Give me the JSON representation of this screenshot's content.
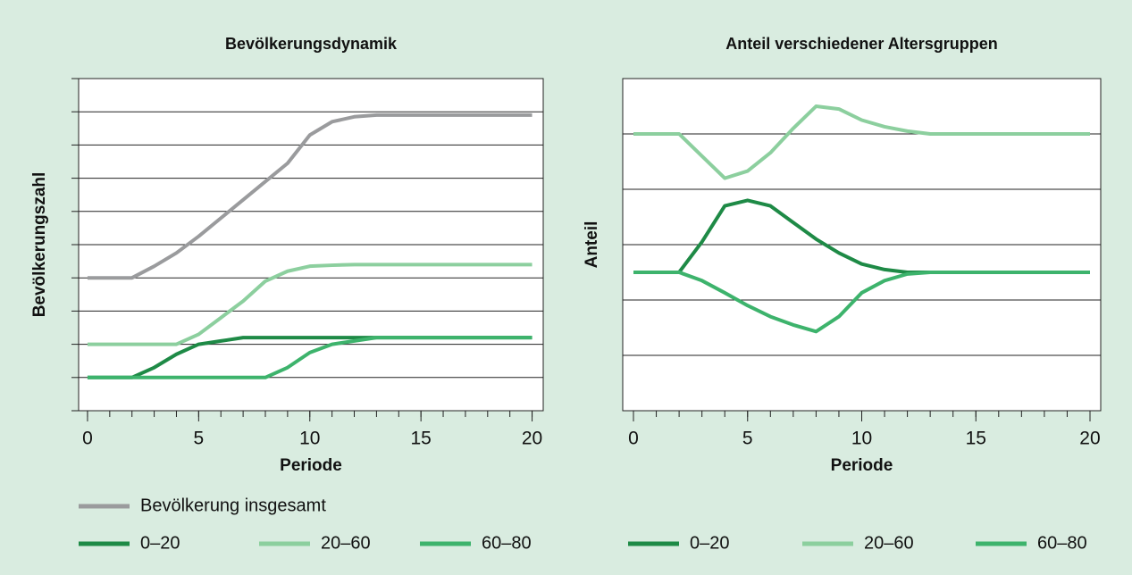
{
  "chart_data": [
    {
      "type": "line",
      "title": "Bevölkerungsdynamik",
      "x_label": "Periode",
      "y_label": "Bevölkerungszahl",
      "x": [
        0,
        1,
        2,
        3,
        4,
        5,
        6,
        7,
        8,
        9,
        10,
        11,
        12,
        13,
        14,
        15,
        16,
        17,
        18,
        19,
        20
      ],
      "xlim": [
        -0.4,
        20.5
      ],
      "xticks": [
        0,
        5,
        10,
        15,
        20
      ],
      "ylim": [
        0,
        10
      ],
      "yticks": [
        0,
        1,
        2,
        3,
        4,
        5,
        6,
        7,
        8,
        9,
        10
      ],
      "grid": true,
      "y_tick_marks": true,
      "series": [
        {
          "name": "Bevölkerung insgesamt",
          "color": "#9a9b9d",
          "values": [
            4,
            4,
            4,
            4.35,
            4.75,
            5.25,
            5.8,
            6.35,
            6.9,
            7.45,
            8.3,
            8.7,
            8.85,
            8.9,
            8.9,
            8.9,
            8.9,
            8.9,
            8.9,
            8.9,
            8.9
          ]
        },
        {
          "name": "0–20",
          "color": "#1e8a46",
          "values": [
            1,
            1,
            1,
            1.3,
            1.7,
            2,
            2.1,
            2.2,
            2.2,
            2.2,
            2.2,
            2.2,
            2.2,
            2.2,
            2.2,
            2.2,
            2.2,
            2.2,
            2.2,
            2.2,
            2.2
          ]
        },
        {
          "name": "20–60",
          "color": "#8ccf9e",
          "values": [
            2,
            2,
            2,
            2,
            2,
            2.3,
            2.8,
            3.3,
            3.9,
            4.2,
            4.35,
            4.38,
            4.4,
            4.4,
            4.4,
            4.4,
            4.4,
            4.4,
            4.4,
            4.4,
            4.4
          ]
        },
        {
          "name": "60–80",
          "color": "#3db36c",
          "values": [
            1,
            1,
            1,
            1,
            1,
            1,
            1,
            1,
            1,
            1.3,
            1.75,
            2,
            2.1,
            2.2,
            2.2,
            2.2,
            2.2,
            2.2,
            2.2,
            2.2,
            2.2
          ]
        }
      ]
    },
    {
      "type": "line",
      "title": "Anteil verschiedener Altersgruppen",
      "x_label": "Periode",
      "y_label": "Anteil",
      "x": [
        0,
        1,
        2,
        3,
        4,
        5,
        6,
        7,
        8,
        9,
        10,
        11,
        12,
        13,
        14,
        15,
        16,
        17,
        18,
        19,
        20
      ],
      "xlim": [
        -0.47,
        20.47
      ],
      "xticks": [
        0,
        5,
        10,
        15,
        20
      ],
      "ylim": [
        0,
        6
      ],
      "yticks": [
        1,
        2,
        3,
        4,
        5
      ],
      "grid": true,
      "y_tick_marks": false,
      "series": [
        {
          "name": "0–20",
          "color": "#1e8a46",
          "values": [
            2.5,
            2.5,
            2.5,
            3.05,
            3.7,
            3.8,
            3.7,
            3.4,
            3.1,
            2.85,
            2.65,
            2.55,
            2.5,
            2.5,
            2.5,
            2.5,
            2.5,
            2.5,
            2.5,
            2.5,
            2.5
          ]
        },
        {
          "name": "20–60",
          "color": "#8ccf9e",
          "values": [
            5,
            5,
            5,
            4.6,
            4.2,
            4.33,
            4.66,
            5.1,
            5.5,
            5.45,
            5.25,
            5.13,
            5.05,
            5,
            5,
            5,
            5,
            5,
            5,
            5,
            5
          ]
        },
        {
          "name": "60–80",
          "color": "#3db36c",
          "values": [
            2.5,
            2.5,
            2.5,
            2.35,
            2.13,
            1.9,
            1.7,
            1.55,
            1.43,
            1.7,
            2.13,
            2.35,
            2.47,
            2.5,
            2.5,
            2.5,
            2.5,
            2.5,
            2.5,
            2.5,
            2.5
          ]
        }
      ]
    }
  ]
}
